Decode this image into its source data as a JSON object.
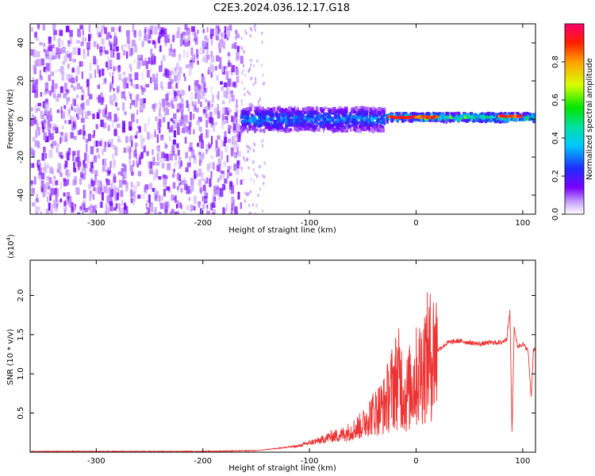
{
  "figure_title": "C2E3.2024.036.12.17.G18",
  "colors": {
    "snr_line": "#ee3333",
    "spectrum_dominant": "#7a00ff",
    "axis": "#000000"
  },
  "chart_data": [
    {
      "type": "heatmap",
      "xlabel": "Height of straight line (km)",
      "ylabel": "Frequency (Hz)",
      "xlim": [
        -362,
        112
      ],
      "ylim": [
        -50,
        50
      ],
      "xticks": [
        -300,
        -200,
        -100,
        0,
        100
      ],
      "yticks": [
        -40,
        -20,
        0,
        20,
        40
      ],
      "xtick_labels": [
        "-300",
        "-200",
        "-100",
        "0",
        "100"
      ],
      "ytick_labels": [
        "-40",
        "-20",
        "0",
        "20",
        "40"
      ],
      "colorbar": {
        "label": "Normalized spectral amplitude",
        "range": [
          0,
          1
        ],
        "ticks": [
          0.0,
          0.2,
          0.4,
          0.6,
          0.8
        ],
        "tick_labels": [
          "0.0",
          "0.2",
          "0.4",
          "0.6",
          "0.8"
        ],
        "colormap": "rainbow"
      },
      "regions": [
        {
          "x_range": [
            -362,
            -165
          ],
          "freq_range": [
            -50,
            50
          ],
          "amplitude": 0.1,
          "description": "broadband noise"
        },
        {
          "x_range": [
            -165,
            -30
          ],
          "freq_center": 0,
          "freq_halfwidth": 6,
          "amplitude": 0.35
        },
        {
          "x_range": [
            -30,
            112
          ],
          "freq_center": 1,
          "freq_halfwidth": 2,
          "amplitude": 0.6
        },
        {
          "x_range": [
            -25,
            20
          ],
          "freq_center": 1,
          "amplitude": 0.95
        },
        {
          "x_range": [
            78,
            100
          ],
          "freq_center": 1.5,
          "amplitude": 0.95
        }
      ]
    },
    {
      "type": "line",
      "xlabel": "Height of straight line (km)",
      "ylabel": "SNR (10 * v/v)",
      "scale_label": "(x10",
      "scale_exp": "4",
      "scale_close": ")",
      "xlim": [
        -362,
        112
      ],
      "ylim": [
        0,
        2.45
      ],
      "xticks": [
        -300,
        -200,
        -100,
        0,
        100
      ],
      "yticks": [
        0.5,
        1.0,
        1.5,
        2.0
      ],
      "xtick_labels": [
        "-300",
        "-200",
        "-100",
        "0",
        "100"
      ],
      "ytick_labels": [
        "0.5",
        "1.0",
        "1.5",
        "2.0"
      ],
      "series": [
        {
          "x": [
            -362,
            -300,
            -200,
            -150,
            -130,
            -110,
            -100,
            -90,
            -80,
            -70,
            -60,
            -50,
            -45,
            -40,
            -35,
            -30,
            -25,
            -20,
            -15,
            -10,
            -5,
            0,
            5,
            10,
            20,
            30,
            40,
            50,
            60,
            70,
            80,
            85,
            88,
            90,
            92,
            95,
            100,
            105,
            108,
            110,
            112
          ],
          "y": [
            0.01,
            0.01,
            0.01,
            0.02,
            0.05,
            0.08,
            0.12,
            0.15,
            0.2,
            0.22,
            0.28,
            0.35,
            0.45,
            0.5,
            0.55,
            0.6,
            0.75,
            0.9,
            0.95,
            0.7,
            0.85,
            0.95,
            1.05,
            1.2,
            1.3,
            1.4,
            1.42,
            1.4,
            1.38,
            1.4,
            1.4,
            1.45,
            1.8,
            0.25,
            1.6,
            1.35,
            1.38,
            1.3,
            0.7,
            1.3,
            1.32
          ]
        }
      ]
    }
  ]
}
